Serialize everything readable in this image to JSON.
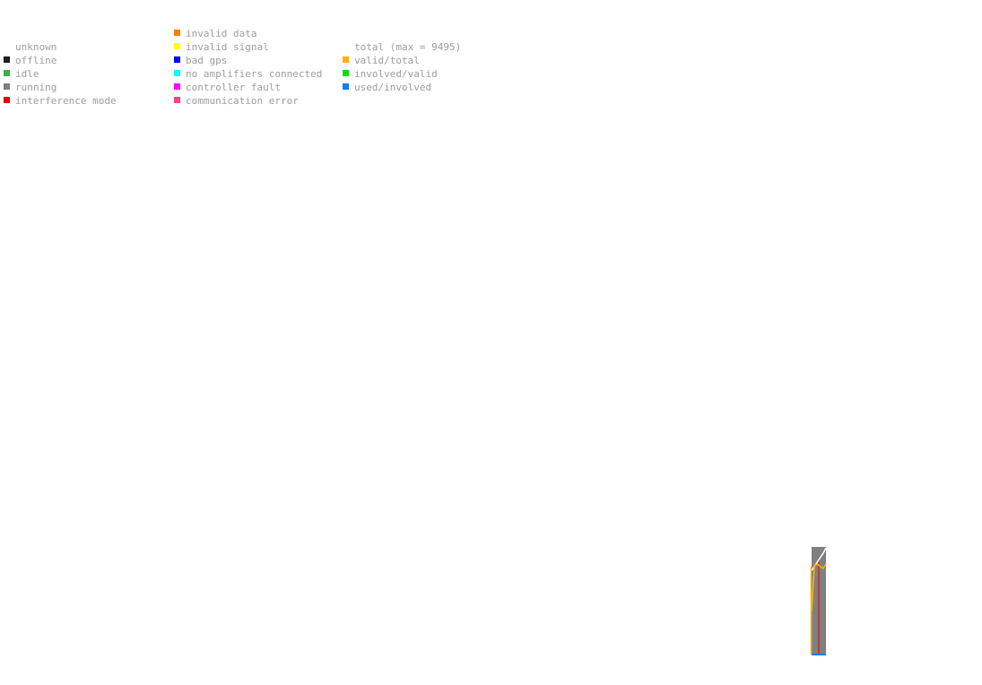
{
  "legend": {
    "columns": [
      {
        "items": [
          {
            "label": "",
            "color": ""
          },
          {
            "label": "unknown",
            "color": ""
          },
          {
            "label": "offline",
            "color": "#1e1e1e"
          },
          {
            "label": "idle",
            "color": "#3cb043"
          },
          {
            "label": "running",
            "color": "#808080"
          },
          {
            "label": "interference mode",
            "color": "#e00000"
          }
        ]
      },
      {
        "items": [
          {
            "label": "invalid data",
            "color": "#ff7f00"
          },
          {
            "label": "invalid signal",
            "color": "#ffff00"
          },
          {
            "label": "bad gps",
            "color": "#0000ff"
          },
          {
            "label": "no amplifiers connected",
            "color": "#00ffff"
          },
          {
            "label": "controller fault",
            "color": "#ff00ff"
          },
          {
            "label": "communication error",
            "color": "#ff4080"
          }
        ]
      },
      {
        "items": [
          {
            "label": "",
            "color": ""
          },
          {
            "label": "total (max = 9495)",
            "color": ""
          },
          {
            "label": "valid/total",
            "color": "#ffb000"
          },
          {
            "label": "involved/valid",
            "color": "#00e000"
          },
          {
            "label": "used/involved",
            "color": "#0080ff"
          }
        ]
      }
    ]
  },
  "chart_data": {
    "type": "area",
    "status_fractions": {
      "running": 1.0
    },
    "series": [
      {
        "name": "total (max = 9495)",
        "color": "#ffffff",
        "values": [
          0.78,
          0.82,
          0.86,
          0.9,
          0.94,
          0.99
        ]
      },
      {
        "name": "valid/total",
        "color": "#ffb000",
        "values": [
          0.4,
          0.83,
          0.84,
          0.82,
          0.8,
          0.84
        ]
      },
      {
        "name": "involved/valid",
        "color": "#00e000",
        "values": [
          0.0,
          0.0,
          0.0,
          0.0,
          0.0,
          0.0
        ]
      },
      {
        "name": "used/involved",
        "color": "#0080ff",
        "values": [
          0.0,
          0.0,
          0.0,
          0.0,
          0.0,
          0.0
        ]
      }
    ],
    "interference_marker_color": "#e00000",
    "ylim": [
      0,
      1
    ]
  }
}
